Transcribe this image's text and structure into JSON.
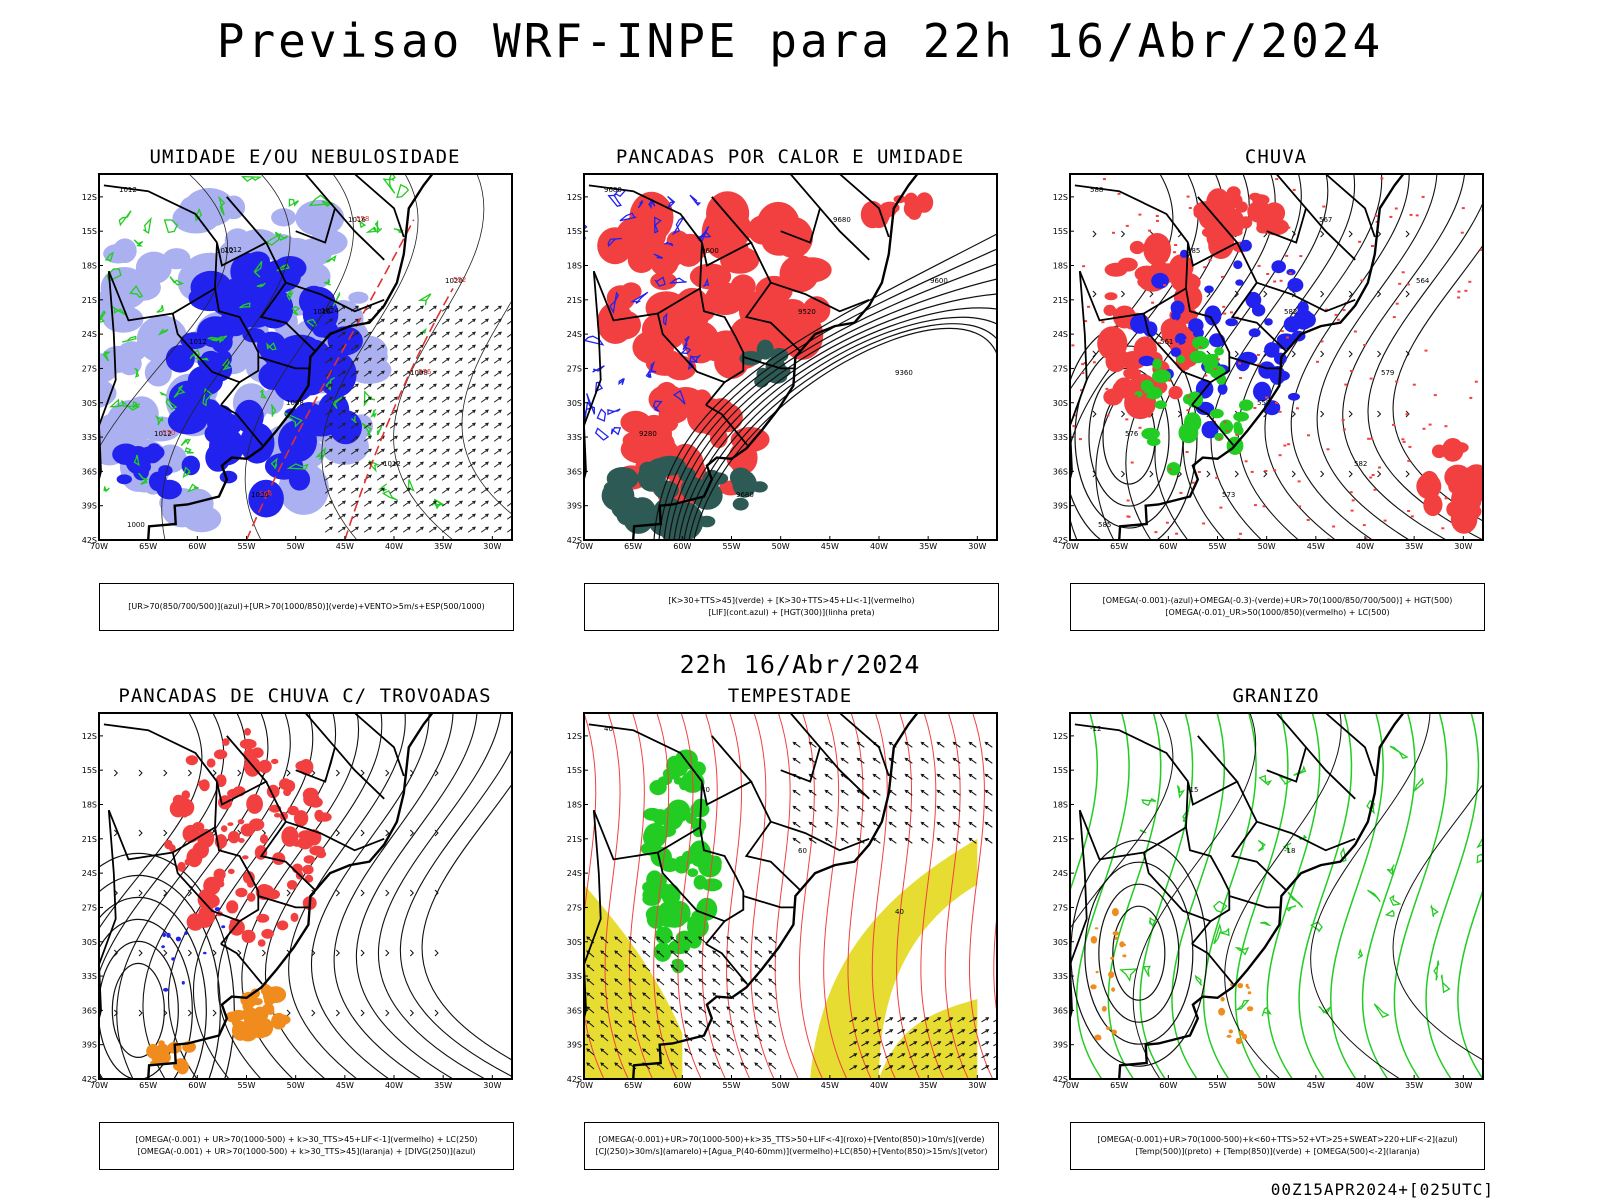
{
  "header": {
    "title": "Previsao WRF-INPE  para 22h 16/Abr/2024",
    "subtitle": "22h 16/Abr/2024",
    "footer": "00Z15APR2024+[025UTC]"
  },
  "axes": {
    "lat_labels": [
      "12S",
      "15S",
      "18S",
      "21S",
      "24S",
      "27S",
      "30S",
      "33S",
      "36S",
      "39S",
      "42S"
    ],
    "lon_labels": [
      "70W",
      "65W",
      "60W",
      "55W",
      "50W",
      "45W",
      "40W",
      "35W",
      "30W"
    ]
  },
  "colors": {
    "red": "#f24040",
    "green": "#22cc22",
    "blue": "#2222ee",
    "lightblue": "#aab0f0",
    "orange": "#f08c1e",
    "yellow": "#e6dc32",
    "darkteal": "#2d5a55"
  },
  "panels": [
    {
      "title": "UMIDADE E/OU NEBULOSIDADE",
      "legend": [
        "[UR>70(850/700/500)](azul)+[UR>70(1000/850)](verde)+VENTO>5m/s+ESP(500/1000)"
      ],
      "contour_labels": [
        "1012",
        "1012",
        "1016",
        "1008",
        "1012",
        "1020",
        "1016",
        "1020",
        "1012",
        "1008",
        "1012",
        "1000",
        "1012",
        "1024",
        "576",
        "570",
        "564",
        "558",
        "552"
      ]
    },
    {
      "title": "PANCADAS POR CALOR E UMIDADE",
      "legend": [
        "[K>30+TTS>45](verde) + [K>30+TTS>45+LI<-1](vermelho)",
        "[LIF](cont.azul) + [HGT(300)](linha preta)"
      ],
      "contour_labels": [
        "9680",
        "9600",
        "9520",
        "9360",
        "9280",
        "9680",
        "9680",
        "9600"
      ]
    },
    {
      "title": "CHUVA",
      "legend": [
        "[OMEGA(-0.001)-(azul)+OMEGA(-0.3)-(verde)+UR>70(1000/850/700/500)] + HGT(500)",
        "[OMEGA(-0.01)_UR>50(1000/850)(vermelho) + LC(500)"
      ],
      "contour_labels": [
        "588",
        "585",
        "582",
        "579",
        "576",
        "573",
        "567",
        "564",
        "561",
        "558",
        "582",
        "585"
      ]
    },
    {
      "title": "PANCADAS DE CHUVA C/ TROVOADAS",
      "legend": [
        "[OMEGA(-0.001) + UR>70(1000-500) + k>30_TTS>45+LIF<-1](vermelho) + LC(250)",
        "[OMEGA(-0.001) + UR>70(1000-500) + k>30_TTS>45](laranja) + [DIVG(250)](azul)"
      ],
      "contour_labels": []
    },
    {
      "title": "TEMPESTADE",
      "legend": [
        "[OMEGA(-0.001)+UR>70(1000-500)+k>35_TTS>50+LIF<-4](roxo)+[Vento(850)>10m/s](verde)",
        "[CJ(250)>30m/s](amarelo)+[Agua_P(40-60mm)](vermelho)+LC(850)+[Vento(850)>15m/s](vetor)"
      ],
      "contour_labels": [
        "40",
        "40",
        "60",
        "40"
      ]
    },
    {
      "title": "GRANIZO",
      "legend": [
        "[OMEGA(-0.001)+UR>70(1000-500)+k<60+TTS>52+VT>25+SWEAT>220+LIF<-2](azul)",
        "[Temp(500)](preto) + [Temp(850)](verde) + [OMEGA(500)<-2](laranja)"
      ],
      "contour_labels": [
        "-12",
        "-15",
        "-18"
      ]
    }
  ]
}
